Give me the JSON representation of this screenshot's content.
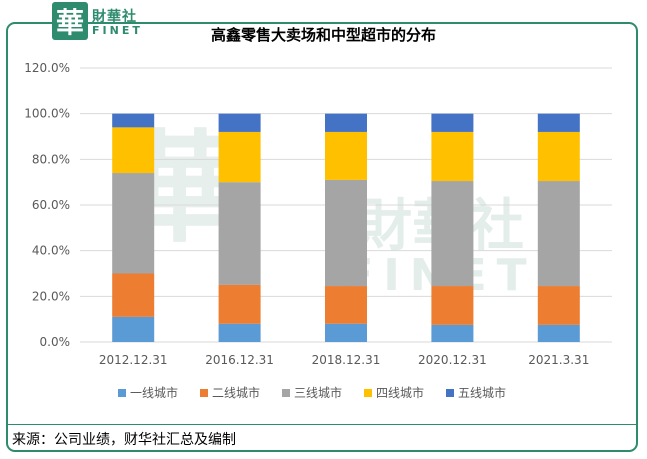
{
  "brand": {
    "logo_char": "華",
    "name_cn": "財華社",
    "name_en": "FINET",
    "accent": "#2e8b6e"
  },
  "chart_data": {
    "type": "bar",
    "stacked": true,
    "title": "高鑫零售大卖场和中型超市的分布",
    "categories": [
      "2012.12.31",
      "2016.12.31",
      "2018.12.31",
      "2020.12.31",
      "2021.3.31"
    ],
    "series": [
      {
        "name": "一线城市",
        "color": "#5b9bd5",
        "values": [
          11,
          8,
          8,
          7.5,
          7.5
        ]
      },
      {
        "name": "二线城市",
        "color": "#ed7d31",
        "values": [
          19,
          17,
          16.5,
          17,
          17
        ]
      },
      {
        "name": "三线城市",
        "color": "#a5a5a5",
        "values": [
          44,
          45,
          46.5,
          46,
          46
        ]
      },
      {
        "name": "四线城市",
        "color": "#ffc000",
        "values": [
          20,
          22,
          21,
          21.5,
          21.5
        ]
      },
      {
        "name": "五线城市",
        "color": "#4472c4",
        "values": [
          6,
          8,
          8,
          8,
          8
        ]
      }
    ],
    "yticks": [
      "0.0%",
      "20.0%",
      "40.0%",
      "60.0%",
      "80.0%",
      "100.0%",
      "120.0%"
    ],
    "ylim": [
      0,
      120
    ],
    "grid": true,
    "legend": "bottom"
  },
  "source": "来源：公司业绩，财华社汇总及编制"
}
